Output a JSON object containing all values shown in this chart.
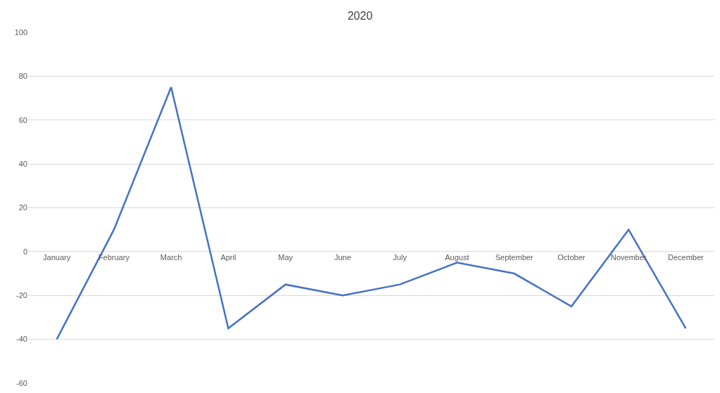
{
  "chart_data": {
    "type": "line",
    "title": "2020",
    "categories": [
      "January",
      "February",
      "March",
      "April",
      "May",
      "June",
      "July",
      "August",
      "September",
      "October",
      "November",
      "December"
    ],
    "series": [
      {
        "color": "#4472c4",
        "values": [
          -40,
          10,
          75,
          -35,
          -15,
          -20,
          -15,
          -5,
          -10,
          -25,
          10,
          -35
        ]
      }
    ],
    "ylim": [
      -60,
      100
    ],
    "yticks": [
      -60,
      -40,
      -20,
      0,
      20,
      40,
      60,
      80,
      100
    ],
    "grid": "y",
    "marker": "none",
    "line_style": "solid"
  }
}
